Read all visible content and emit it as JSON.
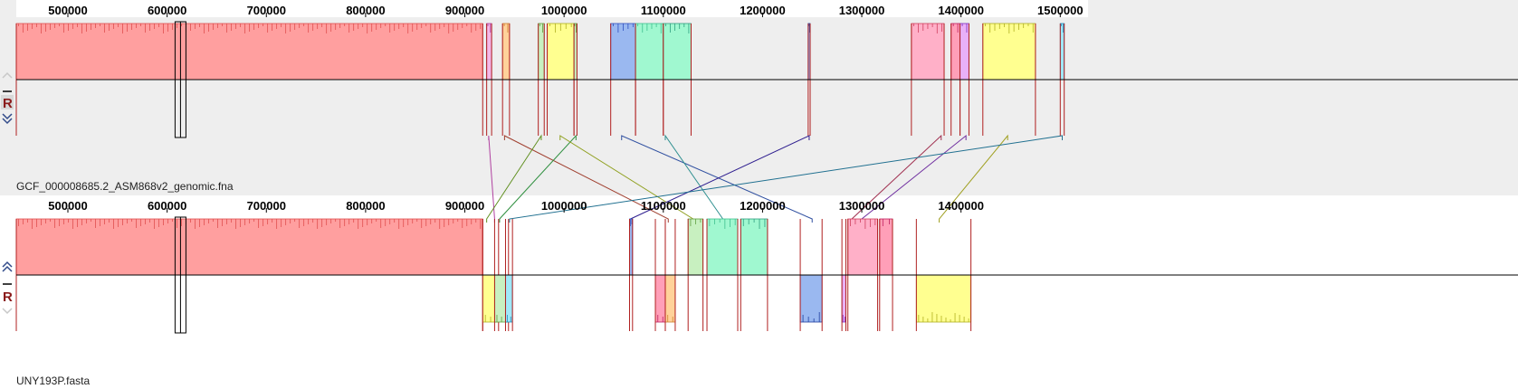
{
  "sequences": [
    {
      "name": "GCF_000008685.2_ASM868v2_genomic.fna",
      "ticks": [
        "500000",
        "600000",
        "700000",
        "800000",
        "900000",
        "1000000",
        "1100000",
        "1200000",
        "1300000",
        "1400000",
        "1500000"
      ],
      "blocks": [
        {
          "start": 448000,
          "end": 918000,
          "strand": "+",
          "color": "#ff9f9f",
          "edge": "#e05050"
        },
        {
          "start": 922000,
          "end": 927000,
          "strand": "+",
          "color": "#f4b8e8",
          "edge": "#b040a0"
        },
        {
          "start": 938000,
          "end": 945000,
          "strand": "+",
          "color": "#ffd29a",
          "edge": "#d08030"
        },
        {
          "start": 974000,
          "end": 980000,
          "strand": "+",
          "color": "#c8f0c0",
          "edge": "#60a040"
        },
        {
          "start": 983000,
          "end": 1010000,
          "strand": "+",
          "color": "#ffff90",
          "edge": "#b0b020"
        },
        {
          "start": 1010000,
          "end": 1013000,
          "strand": "+",
          "color": "#c8f0c0",
          "edge": "#60a040"
        },
        {
          "start": 1047000,
          "end": 1072000,
          "strand": "+",
          "color": "#9ab8f0",
          "edge": "#3050c0"
        },
        {
          "start": 1072000,
          "end": 1100000,
          "strand": "+",
          "color": "#a0f8d0",
          "edge": "#40c090"
        },
        {
          "start": 1100000,
          "end": 1128000,
          "strand": "+",
          "color": "#a0f8d0",
          "edge": "#30a080"
        },
        {
          "start": 1246000,
          "end": 1248000,
          "strand": "+",
          "color": "#9ab8f0",
          "edge": "#2040a0"
        },
        {
          "start": 1350000,
          "end": 1383000,
          "strand": "+",
          "color": "#ffb0c8",
          "edge": "#d04060"
        },
        {
          "start": 1390000,
          "end": 1399000,
          "strand": "+",
          "color": "#ff9fb8",
          "edge": "#c02060"
        },
        {
          "start": 1399000,
          "end": 1408000,
          "strand": "+",
          "color": "#e8b0f8",
          "edge": "#8030c0"
        },
        {
          "start": 1422000,
          "end": 1475000,
          "strand": "+",
          "color": "#ffff90",
          "edge": "#b0b020"
        },
        {
          "start": 1500000,
          "end": 1504000,
          "strand": "+",
          "color": "#a0e8f8",
          "edge": "#2090c0"
        }
      ]
    },
    {
      "name": "UNY193P.fasta",
      "ticks": [
        "500000",
        "600000",
        "700000",
        "800000",
        "900000",
        "1000000",
        "1100000",
        "1200000",
        "1300000",
        "1400000"
      ],
      "blocks": [
        {
          "start": 448000,
          "end": 918000,
          "strand": "+",
          "color": "#ff9f9f",
          "edge": "#e05050"
        },
        {
          "start": 918000,
          "end": 934000,
          "strand": "-",
          "color": "#ffff90",
          "edge": "#b0b020"
        },
        {
          "start": 930000,
          "end": 944000,
          "strand": "-",
          "color": "#c8f0c0",
          "edge": "#60a040"
        },
        {
          "start": 941000,
          "end": 948000,
          "strand": "-",
          "color": "#a0e8f8",
          "edge": "#2090c0"
        },
        {
          "start": 1066000,
          "end": 1069000,
          "strand": "+",
          "color": "#9ab8f0",
          "edge": "#3050c0"
        },
        {
          "start": 1092000,
          "end": 1102000,
          "strand": "-",
          "color": "#ff9fb8",
          "edge": "#c02060"
        },
        {
          "start": 1102000,
          "end": 1112000,
          "strand": "-",
          "color": "#ffd29a",
          "edge": "#d08030"
        },
        {
          "start": 1125000,
          "end": 1140000,
          "strand": "+",
          "color": "#c8f0c0",
          "edge": "#60a040"
        },
        {
          "start": 1144000,
          "end": 1175000,
          "strand": "+",
          "color": "#a0f8d0",
          "edge": "#40c090"
        },
        {
          "start": 1178000,
          "end": 1205000,
          "strand": "+",
          "color": "#a0f8d0",
          "edge": "#30a080"
        },
        {
          "start": 1238000,
          "end": 1260000,
          "strand": "-",
          "color": "#9ab8f0",
          "edge": "#2040a0"
        },
        {
          "start": 1280000,
          "end": 1284000,
          "strand": "-",
          "color": "#e8b0f8",
          "edge": "#8030c0"
        },
        {
          "start": 1286000,
          "end": 1316000,
          "strand": "+",
          "color": "#ffb0c8",
          "edge": "#d04060"
        },
        {
          "start": 1318000,
          "end": 1331000,
          "strand": "+",
          "color": "#ff9fb8",
          "edge": "#c02060"
        },
        {
          "start": 1355000,
          "end": 1410000,
          "strand": "-",
          "color": "#ffff90",
          "edge": "#b0b020"
        }
      ]
    }
  ],
  "links": [
    {
      "a": 924000,
      "b": 930000,
      "color": "#b040a0"
    },
    {
      "a": 940000,
      "b": 1105000,
      "color": "#a04030"
    },
    {
      "a": 977000,
      "b": 922000,
      "color": "#609020"
    },
    {
      "a": 1012000,
      "b": 935000,
      "color": "#309040"
    },
    {
      "a": 996000,
      "b": 1130000,
      "color": "#90a020"
    },
    {
      "a": 1058000,
      "b": 1250000,
      "color": "#3050a0"
    },
    {
      "a": 1102000,
      "b": 1160000,
      "color": "#309090"
    },
    {
      "a": 1247000,
      "b": 1067000,
      "color": "#302090"
    },
    {
      "a": 1380000,
      "b": 1290000,
      "color": "#a03050"
    },
    {
      "a": 1405000,
      "b": 1300000,
      "color": "#7030a0"
    },
    {
      "a": 1447000,
      "b": 1378000,
      "color": "#a0a020"
    },
    {
      "a": 1502000,
      "b": 945000,
      "color": "#207090"
    }
  ],
  "controls": {
    "reverse_label": "R"
  }
}
